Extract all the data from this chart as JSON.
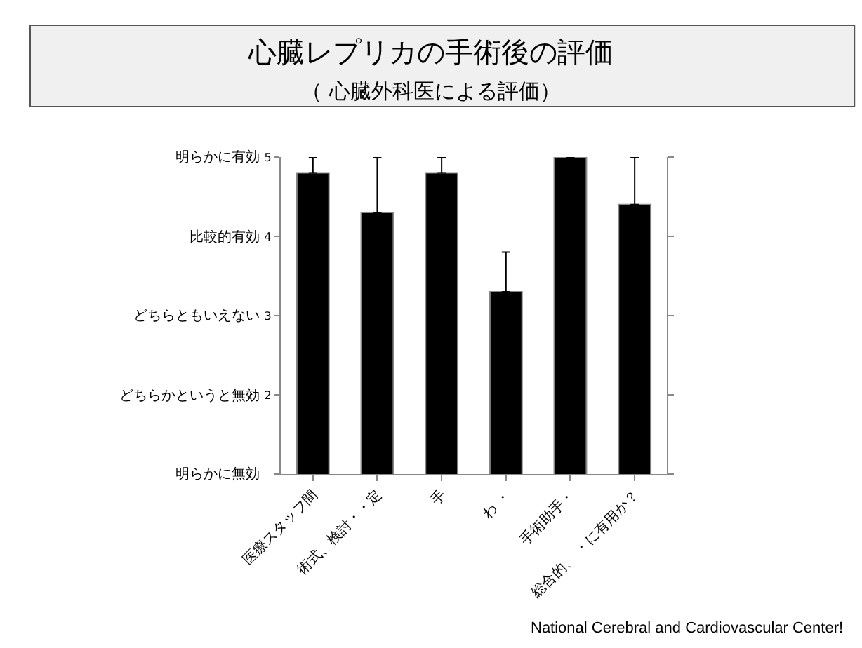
{
  "chart_data": {
    "type": "bar",
    "title": "心臓レプリカの手術後の評価",
    "subtitle": "（ 心臓外科医による評価）",
    "categories": [
      "医療スタッフ間",
      "術式、検討・・定",
      "手",
      "わ ・",
      "手術助手・",
      "総合的、 ・に有用か？"
    ],
    "series": [
      {
        "color": "#000000",
        "values": [
          4.8,
          4.3,
          4.8,
          3.3,
          5.0,
          4.4
        ],
        "errors": [
          [
            4.8,
            5.0
          ],
          [
            4.3,
            5.0
          ],
          [
            4.8,
            5.0
          ],
          [
            3.3,
            3.8
          ],
          null,
          [
            4.4,
            5.0
          ]
        ]
      }
    ],
    "ylim": [
      1,
      5
    ],
    "yticks": [
      {
        "value": 1,
        "label": null
      },
      2,
      3,
      4,
      5
    ],
    "annotations": [
      "明らかに無効",
      "どちらかというと無効",
      "どちらともいえない",
      "比較的有効",
      "明らかに有効",
      "National Cerebral and Cardiovascular Center!"
    ]
  }
}
